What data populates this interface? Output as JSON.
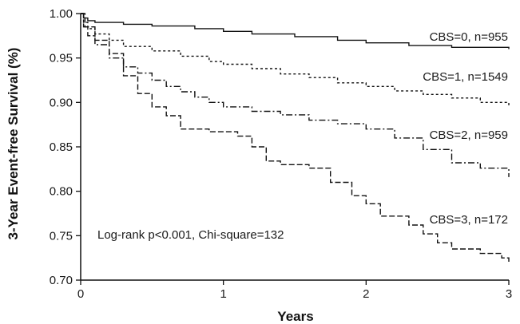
{
  "chart_data": {
    "type": "line",
    "title": "",
    "xlabel": "Years",
    "ylabel": "3-Year Event-free Survival (%)",
    "xlim": [
      0,
      3
    ],
    "ylim": [
      0.7,
      1.0
    ],
    "x_ticks": [
      "0",
      "1",
      "2",
      "3"
    ],
    "y_ticks": [
      "0.70",
      "0.75",
      "0.80",
      "0.85",
      "0.90",
      "0.95",
      "1.00"
    ],
    "grid": false,
    "legend": "inline labels at right end of each curve",
    "annotation": "Log-rank p<0.001, Chi-square=132",
    "series": [
      {
        "name": "CBS=0, n=955",
        "style": "solid",
        "points": [
          [
            0,
            1.0
          ],
          [
            0.02,
            0.995
          ],
          [
            0.05,
            0.992
          ],
          [
            0.1,
            0.99
          ],
          [
            0.3,
            0.988
          ],
          [
            0.5,
            0.986
          ],
          [
            0.8,
            0.983
          ],
          [
            1.0,
            0.98
          ],
          [
            1.2,
            0.977
          ],
          [
            1.5,
            0.974
          ],
          [
            1.8,
            0.97
          ],
          [
            2.0,
            0.967
          ],
          [
            2.3,
            0.964
          ],
          [
            2.6,
            0.962
          ],
          [
            3.0,
            0.96
          ]
        ]
      },
      {
        "name": "CBS=1, n=1549",
        "style": "dashed-short",
        "points": [
          [
            0,
            1.0
          ],
          [
            0.02,
            0.99
          ],
          [
            0.05,
            0.983
          ],
          [
            0.1,
            0.977
          ],
          [
            0.2,
            0.97
          ],
          [
            0.3,
            0.963
          ],
          [
            0.5,
            0.958
          ],
          [
            0.7,
            0.952
          ],
          [
            0.9,
            0.946
          ],
          [
            1.0,
            0.943
          ],
          [
            1.2,
            0.938
          ],
          [
            1.4,
            0.932
          ],
          [
            1.6,
            0.928
          ],
          [
            1.8,
            0.922
          ],
          [
            2.0,
            0.918
          ],
          [
            2.2,
            0.913
          ],
          [
            2.4,
            0.909
          ],
          [
            2.6,
            0.905
          ],
          [
            2.8,
            0.9
          ],
          [
            3.0,
            0.896
          ]
        ]
      },
      {
        "name": "CBS=2, n=959",
        "style": "dash-dot",
        "points": [
          [
            0,
            1.0
          ],
          [
            0.02,
            0.985
          ],
          [
            0.05,
            0.975
          ],
          [
            0.1,
            0.965
          ],
          [
            0.2,
            0.95
          ],
          [
            0.3,
            0.94
          ],
          [
            0.4,
            0.933
          ],
          [
            0.5,
            0.925
          ],
          [
            0.6,
            0.918
          ],
          [
            0.7,
            0.912
          ],
          [
            0.8,
            0.906
          ],
          [
            0.9,
            0.9
          ],
          [
            1.0,
            0.895
          ],
          [
            1.2,
            0.89
          ],
          [
            1.4,
            0.886
          ],
          [
            1.6,
            0.88
          ],
          [
            1.8,
            0.876
          ],
          [
            2.0,
            0.87
          ],
          [
            2.2,
            0.86
          ],
          [
            2.4,
            0.847
          ],
          [
            2.6,
            0.832
          ],
          [
            2.8,
            0.826
          ],
          [
            3.0,
            0.816
          ]
        ]
      },
      {
        "name": "CBS=3, n=172",
        "style": "dashed-long",
        "points": [
          [
            0,
            1.0
          ],
          [
            0.03,
            0.985
          ],
          [
            0.1,
            0.97
          ],
          [
            0.2,
            0.955
          ],
          [
            0.3,
            0.93
          ],
          [
            0.4,
            0.91
          ],
          [
            0.5,
            0.895
          ],
          [
            0.6,
            0.885
          ],
          [
            0.7,
            0.87
          ],
          [
            0.8,
            0.87
          ],
          [
            0.9,
            0.867
          ],
          [
            1.0,
            0.867
          ],
          [
            1.1,
            0.862
          ],
          [
            1.2,
            0.85
          ],
          [
            1.3,
            0.834
          ],
          [
            1.4,
            0.83
          ],
          [
            1.6,
            0.826
          ],
          [
            1.7,
            0.826
          ],
          [
            1.75,
            0.81
          ],
          [
            1.9,
            0.795
          ],
          [
            2.0,
            0.786
          ],
          [
            2.1,
            0.772
          ],
          [
            2.3,
            0.762
          ],
          [
            2.4,
            0.752
          ],
          [
            2.5,
            0.742
          ],
          [
            2.6,
            0.735
          ],
          [
            2.8,
            0.73
          ],
          [
            2.95,
            0.725
          ],
          [
            3.0,
            0.72
          ]
        ]
      }
    ]
  }
}
